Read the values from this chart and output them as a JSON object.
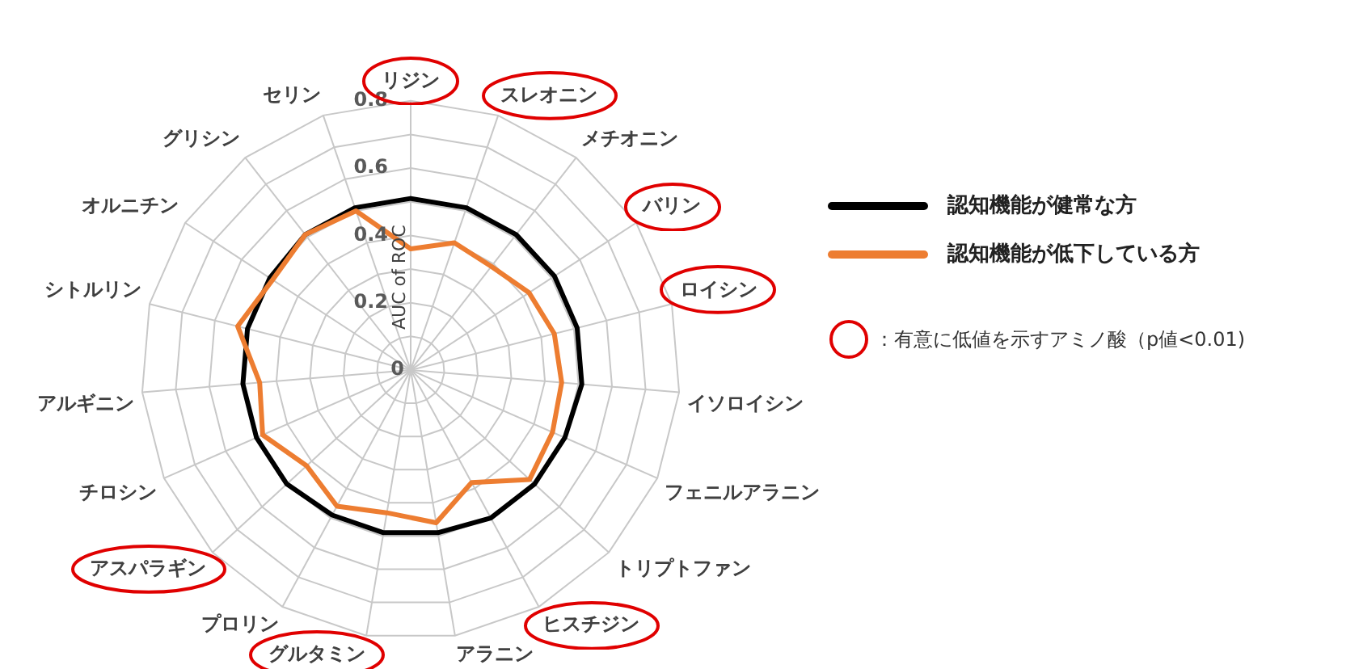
{
  "chart_data": {
    "type": "radar",
    "ylabel": "AUC of ROC",
    "categories": [
      "リジン",
      "スレオニン",
      "メチオニン",
      "バリン",
      "ロイシン",
      "イソロイシン",
      "フェニルアラニン",
      "トリプトファン",
      "ヒスチジン",
      "アラニン",
      "グルタミン",
      "プロリン",
      "アスパラギン",
      "チロシン",
      "アルギニン",
      "シトルリン",
      "オルニチン",
      "グリシン",
      "セリン"
    ],
    "series": [
      {
        "name": "認知機能が健常な方",
        "color": "#000000",
        "values": [
          0.51,
          0.51,
          0.51,
          0.51,
          0.51,
          0.51,
          0.5,
          0.5,
          0.5,
          0.49,
          0.49,
          0.49,
          0.5,
          0.5,
          0.5,
          0.5,
          0.5,
          0.51,
          0.51
        ]
      },
      {
        "name": "認知機能が低下している方",
        "color": "#ed7d31",
        "values": [
          0.36,
          0.4,
          0.39,
          0.42,
          0.44,
          0.45,
          0.46,
          0.48,
          0.38,
          0.46,
          0.43,
          0.46,
          0.42,
          0.48,
          0.45,
          0.53,
          0.49,
          0.51,
          0.5
        ]
      }
    ],
    "ylim": [
      0,
      0.8
    ],
    "yticks": [
      0,
      0.2,
      0.4,
      0.6,
      0.8
    ],
    "grid": true,
    "legend": "right",
    "marker": "none",
    "line_style": "solid",
    "annotations": [
      "：有意に低値を示すアミノ酸（p値<0.01)"
    ]
  }
}
